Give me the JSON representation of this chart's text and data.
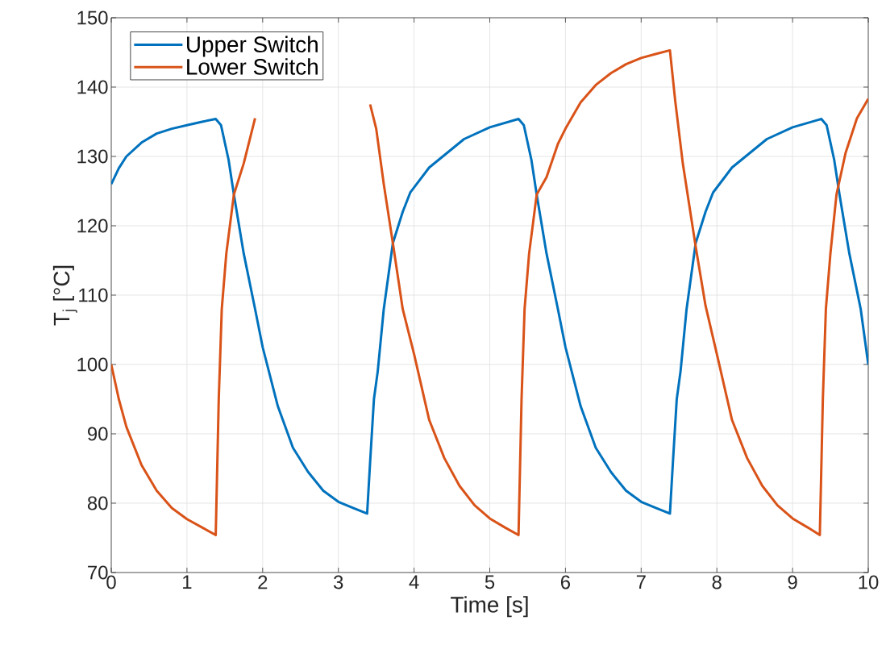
{
  "chart_data": {
    "type": "line",
    "xlabel": "Time [s]",
    "ylabel": "T$_{j}$ [°C]",
    "xlim": [
      0,
      10
    ],
    "ylim": [
      70,
      150
    ],
    "xticks": [
      0,
      1,
      2,
      3,
      4,
      5,
      6,
      7,
      8,
      9,
      10
    ],
    "yticks": [
      70,
      80,
      90,
      100,
      110,
      120,
      130,
      140,
      150
    ],
    "grid": true,
    "legend": "top left",
    "line_style": "solid",
    "marker": "none",
    "series": [
      {
        "name": "Upper Switch",
        "color": "#0072bd",
        "x": [
          0,
          0.1,
          0.2,
          0.4,
          0.6,
          0.8,
          1.0,
          1.2,
          1.38,
          1.45,
          1.55,
          1.62,
          1.75,
          1.9,
          2.0,
          2.2,
          2.4,
          2.6,
          2.8,
          3.0,
          3.2,
          3.38,
          3.42,
          3.47,
          3.52,
          3.6,
          3.72,
          3.85,
          3.95,
          4.2,
          4.66,
          5.0,
          5.38,
          5.45,
          5.55,
          5.62,
          5.75,
          5.9,
          6.0,
          6.2,
          6.4,
          6.6,
          6.8,
          7.0,
          7.2,
          7.38,
          7.42,
          7.47,
          7.52,
          7.6,
          7.72,
          7.85,
          7.95,
          8.2,
          8.66,
          9.0,
          9.38,
          9.45,
          9.55,
          9.62,
          9.75,
          9.9,
          10
        ],
        "values": [
          126,
          128.3,
          130,
          132,
          133.3,
          134,
          134.5,
          135,
          135.4,
          134.5,
          129.5,
          124.5,
          116,
          108,
          102.5,
          94,
          88,
          84.5,
          81.8,
          80.2,
          79.3,
          78.5,
          86,
          95,
          99,
          108,
          117.5,
          122,
          124.8,
          128.4,
          132.5,
          134.2,
          135.4,
          134.5,
          129.5,
          124.5,
          116,
          108,
          102.5,
          94,
          88,
          84.5,
          81.8,
          80.2,
          79.3,
          78.5,
          86,
          95,
          99,
          108,
          117.5,
          122,
          124.8,
          128.4,
          132.5,
          134.2,
          135.4,
          134.5,
          129.5,
          124.5,
          116,
          108,
          100
        ]
      },
      {
        "name": "Lower Switch",
        "color": "#d95319",
        "x": [
          0,
          0.1,
          0.2,
          0.4,
          0.6,
          0.8,
          1.0,
          1.2,
          1.38,
          1.42,
          1.46,
          1.52,
          1.62,
          1.75,
          1.9,
          2.5,
          3.42,
          3.5,
          3.6,
          3.72,
          3.85,
          4.0,
          4.2,
          4.4,
          4.6,
          4.8,
          5.0,
          5.2,
          5.38,
          5.42,
          5.46,
          5.52,
          5.62,
          5.75,
          5.9,
          6.0,
          6.2,
          6.4,
          6.6,
          6.8,
          7.0,
          7.2,
          7.38,
          7.45,
          7.55,
          7.72,
          7.85,
          8.0,
          8.2,
          8.4,
          8.6,
          8.8,
          9.0,
          9.2,
          9.36,
          9.4,
          9.44,
          9.5,
          9.58,
          9.7,
          9.85,
          10
        ],
        "values": [
          100,
          95,
          91,
          85.5,
          81.8,
          79.3,
          77.7,
          76.5,
          75.4,
          95,
          108,
          116,
          124.5,
          129,
          135.5,
          null,
          137.5,
          134,
          126,
          117.5,
          108,
          101.5,
          92,
          86.5,
          82.5,
          79.7,
          77.8,
          76.5,
          75.4,
          95,
          108,
          116,
          124.5,
          127,
          131.8,
          134,
          137.8,
          140.3,
          142,
          143.3,
          144.2,
          144.8,
          145.3,
          138,
          129,
          117,
          108.5,
          101.5,
          92,
          86.5,
          82.5,
          79.7,
          77.8,
          76.5,
          75.4,
          95,
          108,
          116,
          124.5,
          130.5,
          135.5,
          138.3
        ]
      }
    ]
  }
}
